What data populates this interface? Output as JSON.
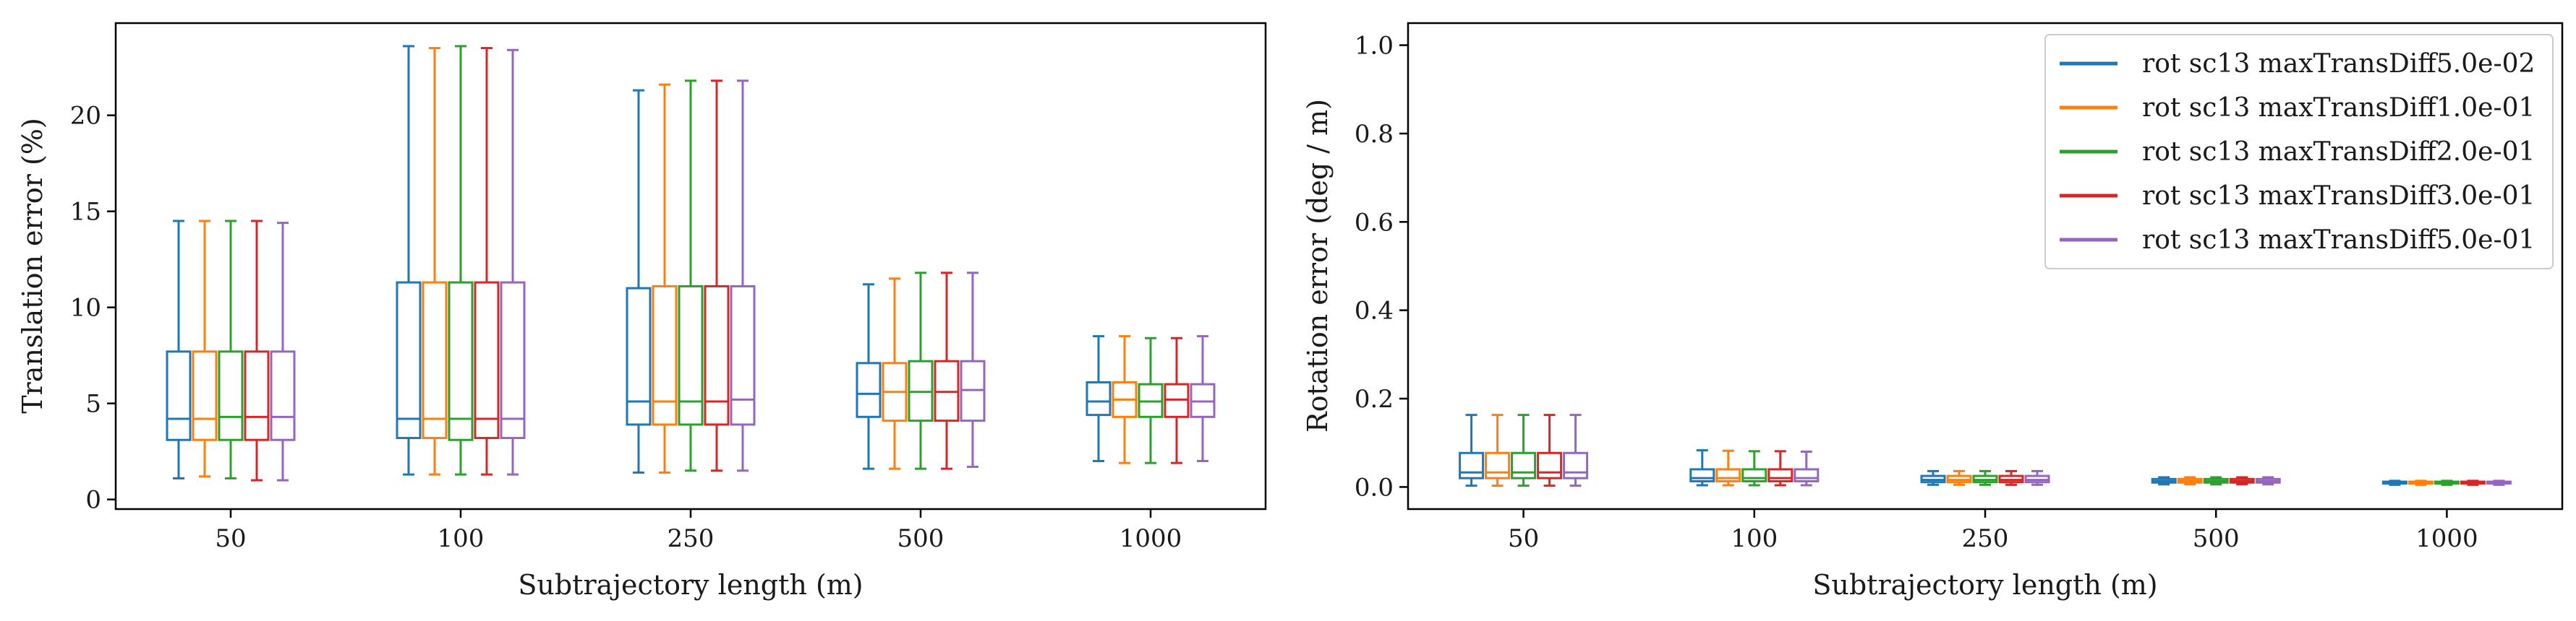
{
  "colors": {
    "series": [
      "#1f77b4",
      "#ff7f0e",
      "#2ca02c",
      "#d62728",
      "#9467bd"
    ]
  },
  "legend": {
    "placement": "upper-right",
    "entries": [
      "rot sc13 maxTransDiff5.0e-02",
      "rot sc13 maxTransDiff1.0e-01",
      "rot sc13 maxTransDiff2.0e-01",
      "rot sc13 maxTransDiff3.0e-01",
      "rot sc13 maxTransDiff5.0e-01"
    ]
  },
  "chart_data": [
    {
      "type": "boxplot",
      "xlabel": "Subtrajectory length (m)",
      "ylabel": "Translation error (%)",
      "categories": [
        "50",
        "100",
        "250",
        "500",
        "1000"
      ],
      "ylim": [
        -0.5,
        24.8
      ],
      "yticks": [
        0,
        5,
        10,
        15,
        20
      ],
      "ytick_labels": [
        "0",
        "5",
        "10",
        "15",
        "20"
      ],
      "grid": false,
      "series": [
        {
          "boxes": [
            {
              "whislo": 1.1,
              "q1": 3.1,
              "med": 4.2,
              "q3": 7.7,
              "whishi": 14.5
            },
            {
              "whislo": 1.3,
              "q1": 3.2,
              "med": 4.2,
              "q3": 11.3,
              "whishi": 23.6
            },
            {
              "whislo": 1.4,
              "q1": 3.9,
              "med": 5.1,
              "q3": 11.0,
              "whishi": 21.3
            },
            {
              "whislo": 1.6,
              "q1": 4.3,
              "med": 5.5,
              "q3": 7.1,
              "whishi": 11.2
            },
            {
              "whislo": 2.0,
              "q1": 4.4,
              "med": 5.1,
              "q3": 6.1,
              "whishi": 8.5
            }
          ]
        },
        {
          "boxes": [
            {
              "whislo": 1.2,
              "q1": 3.1,
              "med": 4.2,
              "q3": 7.7,
              "whishi": 14.5
            },
            {
              "whislo": 1.3,
              "q1": 3.2,
              "med": 4.2,
              "q3": 11.3,
              "whishi": 23.5
            },
            {
              "whislo": 1.4,
              "q1": 3.9,
              "med": 5.1,
              "q3": 11.1,
              "whishi": 21.6
            },
            {
              "whislo": 1.6,
              "q1": 4.1,
              "med": 5.6,
              "q3": 7.1,
              "whishi": 11.5
            },
            {
              "whislo": 1.9,
              "q1": 4.3,
              "med": 5.2,
              "q3": 6.1,
              "whishi": 8.5
            }
          ]
        },
        {
          "boxes": [
            {
              "whislo": 1.1,
              "q1": 3.1,
              "med": 4.3,
              "q3": 7.7,
              "whishi": 14.5
            },
            {
              "whislo": 1.3,
              "q1": 3.1,
              "med": 4.2,
              "q3": 11.3,
              "whishi": 23.6
            },
            {
              "whislo": 1.5,
              "q1": 3.9,
              "med": 5.1,
              "q3": 11.1,
              "whishi": 21.8
            },
            {
              "whislo": 1.6,
              "q1": 4.1,
              "med": 5.6,
              "q3": 7.2,
              "whishi": 11.8
            },
            {
              "whislo": 1.9,
              "q1": 4.3,
              "med": 5.1,
              "q3": 6.0,
              "whishi": 8.4
            }
          ]
        },
        {
          "boxes": [
            {
              "whislo": 1.0,
              "q1": 3.1,
              "med": 4.3,
              "q3": 7.7,
              "whishi": 14.5
            },
            {
              "whislo": 1.3,
              "q1": 3.2,
              "med": 4.2,
              "q3": 11.3,
              "whishi": 23.5
            },
            {
              "whislo": 1.5,
              "q1": 3.9,
              "med": 5.1,
              "q3": 11.1,
              "whishi": 21.8
            },
            {
              "whislo": 1.6,
              "q1": 4.1,
              "med": 5.6,
              "q3": 7.2,
              "whishi": 11.8
            },
            {
              "whislo": 1.9,
              "q1": 4.3,
              "med": 5.2,
              "q3": 6.0,
              "whishi": 8.4
            }
          ]
        },
        {
          "boxes": [
            {
              "whislo": 1.0,
              "q1": 3.1,
              "med": 4.3,
              "q3": 7.7,
              "whishi": 14.4
            },
            {
              "whislo": 1.3,
              "q1": 3.2,
              "med": 4.2,
              "q3": 11.3,
              "whishi": 23.4
            },
            {
              "whislo": 1.5,
              "q1": 3.9,
              "med": 5.2,
              "q3": 11.1,
              "whishi": 21.8
            },
            {
              "whislo": 1.7,
              "q1": 4.1,
              "med": 5.7,
              "q3": 7.2,
              "whishi": 11.8
            },
            {
              "whislo": 2.0,
              "q1": 4.3,
              "med": 5.1,
              "q3": 6.0,
              "whishi": 8.5
            }
          ]
        }
      ]
    },
    {
      "type": "boxplot",
      "xlabel": "Subtrajectory length (m)",
      "ylabel": "Rotation error (deg / m)",
      "categories": [
        "50",
        "100",
        "250",
        "500",
        "1000"
      ],
      "ylim": [
        -0.05,
        1.05
      ],
      "yticks": [
        0.0,
        0.2,
        0.4,
        0.6,
        0.8,
        1.0
      ],
      "ytick_labels": [
        "0.0",
        "0.2",
        "0.4",
        "0.6",
        "0.8",
        "1.0"
      ],
      "grid": false,
      "series": [
        {
          "boxes": [
            {
              "whislo": 0.003,
              "q1": 0.02,
              "med": 0.033,
              "q3": 0.077,
              "whishi": 0.163
            },
            {
              "whislo": 0.004,
              "q1": 0.013,
              "med": 0.02,
              "q3": 0.04,
              "whishi": 0.083
            },
            {
              "whislo": 0.005,
              "q1": 0.011,
              "med": 0.016,
              "q3": 0.025,
              "whishi": 0.036
            },
            {
              "whislo": 0.006,
              "q1": 0.01,
              "med": 0.013,
              "q3": 0.018,
              "whishi": 0.022
            },
            {
              "whislo": 0.005,
              "q1": 0.008,
              "med": 0.01,
              "q3": 0.012,
              "whishi": 0.014
            }
          ]
        },
        {
          "boxes": [
            {
              "whislo": 0.003,
              "q1": 0.02,
              "med": 0.033,
              "q3": 0.077,
              "whishi": 0.163
            },
            {
              "whislo": 0.004,
              "q1": 0.013,
              "med": 0.02,
              "q3": 0.04,
              "whishi": 0.082
            },
            {
              "whislo": 0.005,
              "q1": 0.011,
              "med": 0.016,
              "q3": 0.025,
              "whishi": 0.036
            },
            {
              "whislo": 0.006,
              "q1": 0.01,
              "med": 0.013,
              "q3": 0.018,
              "whishi": 0.022
            },
            {
              "whislo": 0.005,
              "q1": 0.008,
              "med": 0.01,
              "q3": 0.012,
              "whishi": 0.014
            }
          ]
        },
        {
          "boxes": [
            {
              "whislo": 0.003,
              "q1": 0.02,
              "med": 0.033,
              "q3": 0.077,
              "whishi": 0.163
            },
            {
              "whislo": 0.004,
              "q1": 0.013,
              "med": 0.02,
              "q3": 0.04,
              "whishi": 0.081
            },
            {
              "whislo": 0.005,
              "q1": 0.011,
              "med": 0.016,
              "q3": 0.025,
              "whishi": 0.036
            },
            {
              "whislo": 0.006,
              "q1": 0.01,
              "med": 0.013,
              "q3": 0.018,
              "whishi": 0.022
            },
            {
              "whislo": 0.005,
              "q1": 0.008,
              "med": 0.01,
              "q3": 0.012,
              "whishi": 0.014
            }
          ]
        },
        {
          "boxes": [
            {
              "whislo": 0.003,
              "q1": 0.02,
              "med": 0.033,
              "q3": 0.077,
              "whishi": 0.163
            },
            {
              "whislo": 0.004,
              "q1": 0.013,
              "med": 0.02,
              "q3": 0.04,
              "whishi": 0.081
            },
            {
              "whislo": 0.005,
              "q1": 0.011,
              "med": 0.016,
              "q3": 0.025,
              "whishi": 0.036
            },
            {
              "whislo": 0.006,
              "q1": 0.01,
              "med": 0.013,
              "q3": 0.018,
              "whishi": 0.022
            },
            {
              "whislo": 0.005,
              "q1": 0.008,
              "med": 0.01,
              "q3": 0.012,
              "whishi": 0.014
            }
          ]
        },
        {
          "boxes": [
            {
              "whislo": 0.003,
              "q1": 0.02,
              "med": 0.033,
              "q3": 0.077,
              "whishi": 0.163
            },
            {
              "whislo": 0.004,
              "q1": 0.013,
              "med": 0.02,
              "q3": 0.04,
              "whishi": 0.08
            },
            {
              "whislo": 0.005,
              "q1": 0.011,
              "med": 0.016,
              "q3": 0.025,
              "whishi": 0.036
            },
            {
              "whislo": 0.006,
              "q1": 0.01,
              "med": 0.013,
              "q3": 0.018,
              "whishi": 0.022
            },
            {
              "whislo": 0.005,
              "q1": 0.008,
              "med": 0.01,
              "q3": 0.012,
              "whishi": 0.014
            }
          ]
        }
      ]
    }
  ]
}
